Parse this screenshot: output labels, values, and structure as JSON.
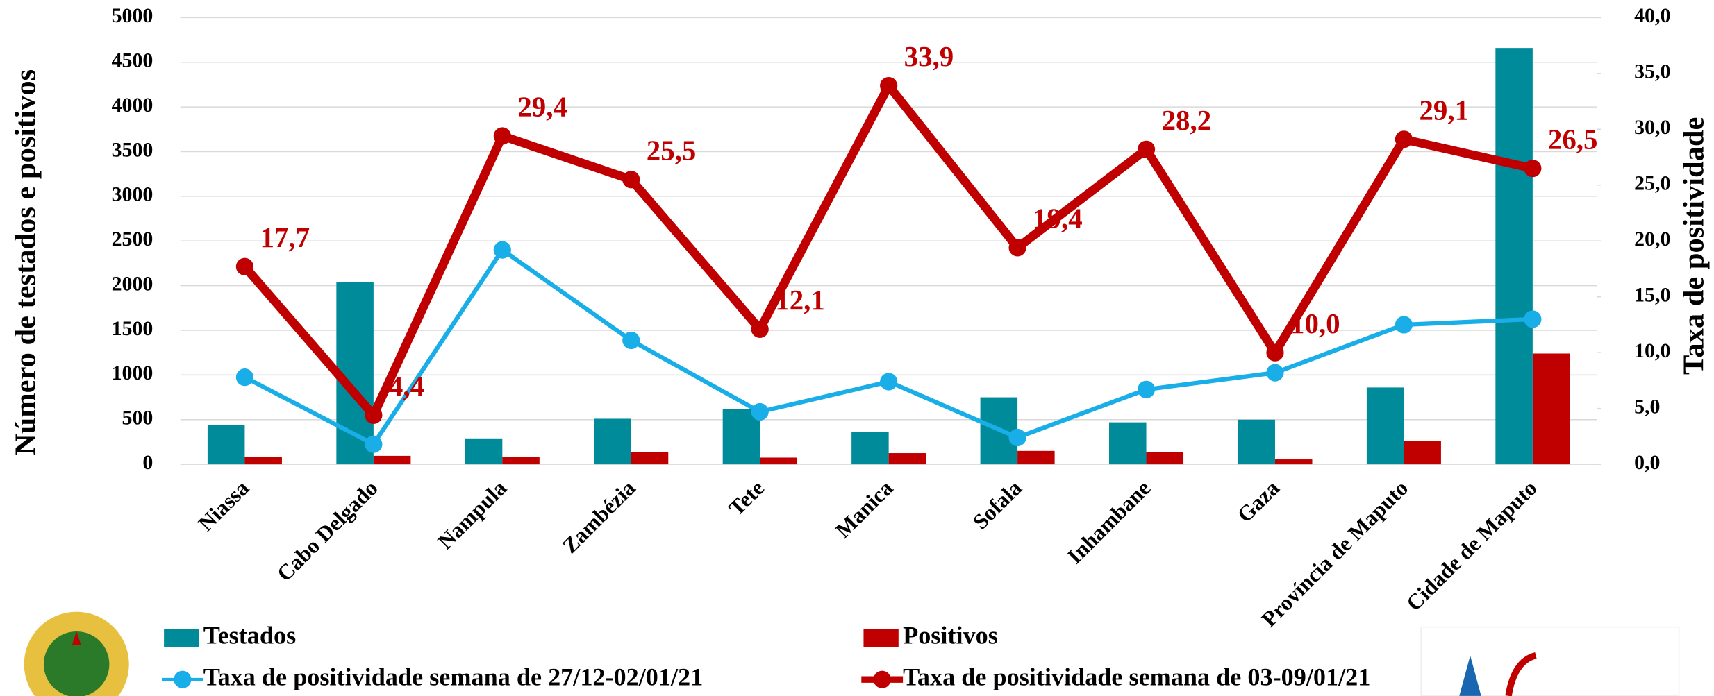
{
  "chart_data": {
    "type": "bar_line",
    "categories": [
      "Niassa",
      "Cabo Delgado",
      "Nampula",
      "Zambézia",
      "Tete",
      "Manica",
      "Sofala",
      "Inhambane",
      "Gaza",
      "Província de Maputo",
      "Cidade de Maputo"
    ],
    "series": [
      {
        "name": "Testados",
        "type": "bar",
        "color": "#008b9a",
        "values": [
          440,
          2040,
          290,
          510,
          620,
          360,
          750,
          470,
          500,
          860,
          4660
        ]
      },
      {
        "name": "Positivos",
        "type": "bar",
        "color": "#c00000",
        "values": [
          80,
          95,
          85,
          135,
          75,
          125,
          150,
          140,
          55,
          260,
          1240
        ]
      },
      {
        "name": "Taxa de positividade semana de 27/12-02/01/21",
        "type": "line",
        "axis": "y2",
        "color": "#1aaee8",
        "values": [
          7.8,
          1.8,
          19.2,
          11.1,
          4.7,
          7.4,
          2.4,
          6.7,
          8.2,
          12.5,
          13.0
        ]
      },
      {
        "name": "Taxa de positividade semana de 03-09/01/21",
        "type": "line",
        "axis": "y2",
        "color": "#c00000",
        "values": [
          17.7,
          4.4,
          29.4,
          25.5,
          12.1,
          33.9,
          19.4,
          28.2,
          10.0,
          29.1,
          26.5
        ],
        "value_labels": [
          "17,7",
          "4,4",
          "29,4",
          "25,5",
          "12,1",
          "33,9",
          "19,4",
          "28,2",
          "10,0",
          "29,1",
          "26,5"
        ]
      }
    ],
    "ylabel": "Número de testados e positivos",
    "y2label": "Taxa de positividade",
    "ylim": [
      0,
      5000
    ],
    "yticks": [
      0,
      500,
      1000,
      1500,
      2000,
      2500,
      3000,
      3500,
      4000,
      4500,
      5000
    ],
    "y2lim": [
      0,
      40
    ],
    "y2ticks": [
      {
        "value": 0,
        "label": "0,0"
      },
      {
        "value": 5,
        "label": "5,0"
      },
      {
        "value": 10,
        "label": "10,0"
      },
      {
        "value": 15,
        "label": "15,0"
      },
      {
        "value": 20,
        "label": "20,0"
      },
      {
        "value": 25,
        "label": "25,0"
      },
      {
        "value": 30,
        "label": "30,0"
      },
      {
        "value": 35,
        "label": "35,0"
      },
      {
        "value": 40,
        "label": "40,0"
      }
    ],
    "grid": true
  }
}
